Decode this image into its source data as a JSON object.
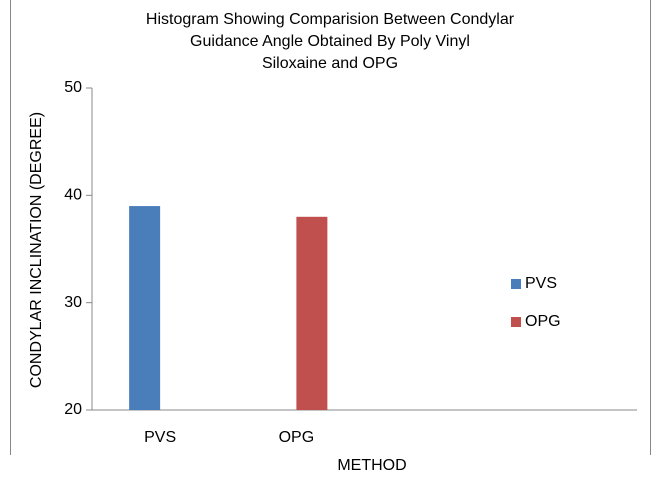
{
  "chart_data": {
    "type": "bar",
    "title": [
      "Histogram  Showing Comparision Between Condylar",
      "Guidance Angle Obtained By Poly Vinyl",
      "Siloxaine and OPG"
    ],
    "x_label": "METHOD",
    "y_label": "CONDYLAR INCLINATION (DEGREE)",
    "categories": [
      "PVS",
      "OPG",
      null,
      null
    ],
    "series": [
      {
        "name": "PVS",
        "color": "#4a7ebb",
        "values": [
          39,
          null,
          null,
          null
        ]
      },
      {
        "name": "OPG",
        "color": "#c0504d",
        "values": [
          null,
          38,
          null,
          null
        ]
      }
    ],
    "ylim": [
      20,
      50
    ],
    "yticks": [
      20,
      30,
      40,
      50
    ],
    "grid": false,
    "legend": "right"
  }
}
